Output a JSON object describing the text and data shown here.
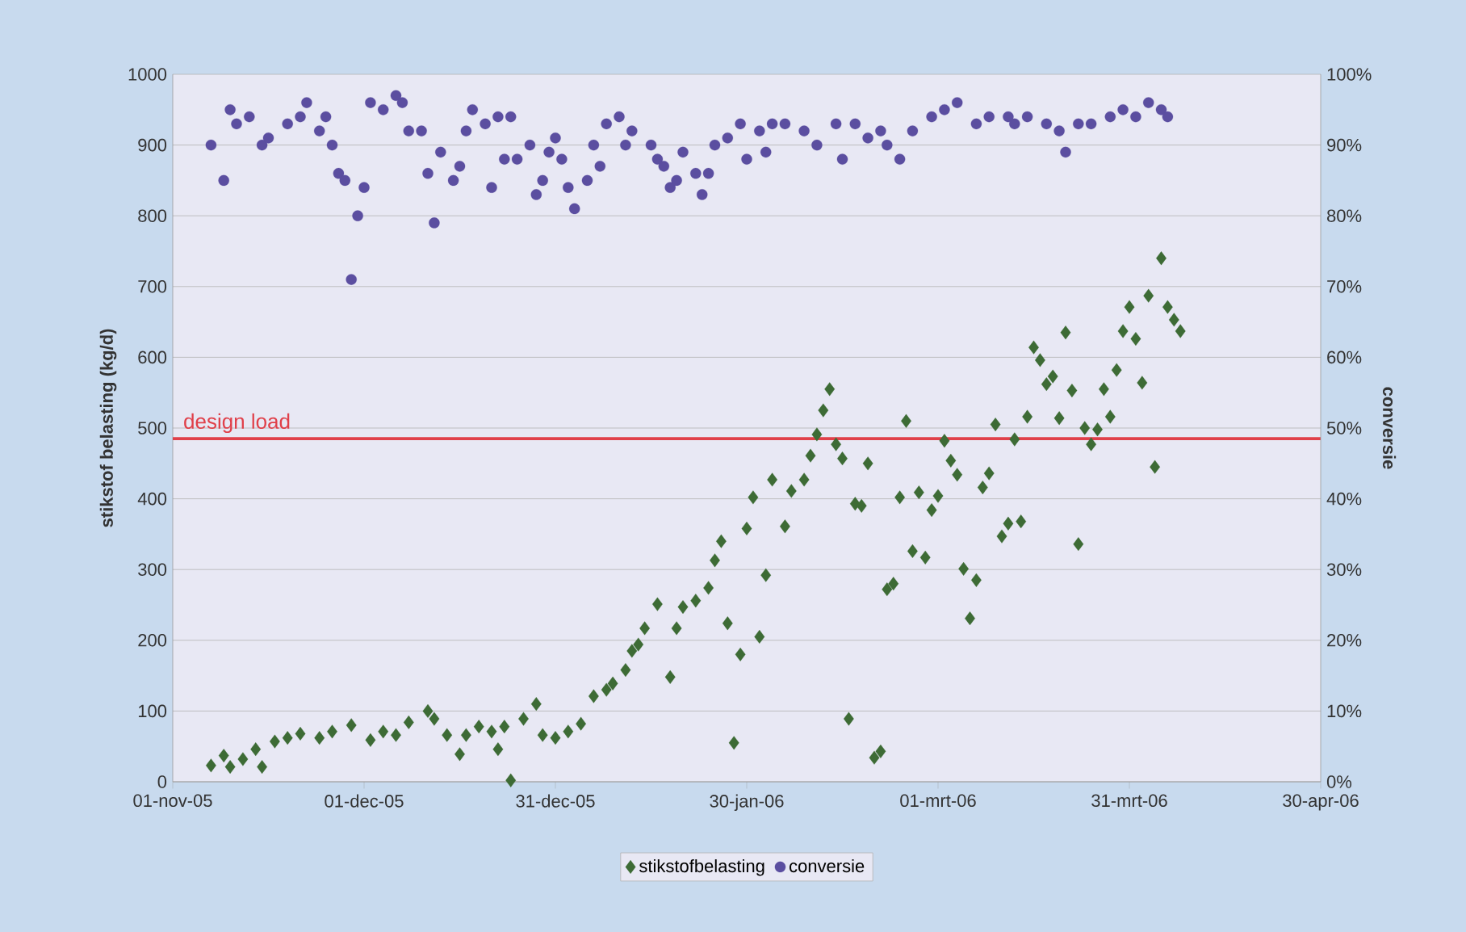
{
  "chart_data": {
    "type": "scatter",
    "xlabel": null,
    "ylabel": "stikstof belasting (kg/d)",
    "y2label": "conversie",
    "xlim": [
      "2005-11-01",
      "2006-04-30"
    ],
    "xticks": [
      {
        "value": "2005-11-01",
        "label": "01-nov-05"
      },
      {
        "value": "2005-12-01",
        "label": "01-dec-05"
      },
      {
        "value": "2005-12-31",
        "label": "31-dec-05"
      },
      {
        "value": "2006-01-30",
        "label": "30-jan-06"
      },
      {
        "value": "2006-03-01",
        "label": "01-mrt-06"
      },
      {
        "value": "2006-03-31",
        "label": "31-mrt-06"
      },
      {
        "value": "2006-04-30",
        "label": "30-apr-06"
      }
    ],
    "ylim": [
      0,
      1000
    ],
    "yticks": [
      0,
      100,
      200,
      300,
      400,
      500,
      600,
      700,
      800,
      900,
      1000
    ],
    "y2lim": [
      0,
      100
    ],
    "y2ticks": [
      {
        "value": 0,
        "label": "0%"
      },
      {
        "value": 10,
        "label": "10%"
      },
      {
        "value": 20,
        "label": "20%"
      },
      {
        "value": 30,
        "label": "30%"
      },
      {
        "value": 40,
        "label": "40%"
      },
      {
        "value": 50,
        "label": "50%"
      },
      {
        "value": 60,
        "label": "60%"
      },
      {
        "value": 70,
        "label": "70%"
      },
      {
        "value": 80,
        "label": "80%"
      },
      {
        "value": 90,
        "label": "90%"
      },
      {
        "value": 100,
        "label": "100%"
      }
    ],
    "grid": "y",
    "legend": "bottom",
    "ref_lines": [
      {
        "axis": "y",
        "value": 485,
        "label": "design load",
        "color": "#e0404a"
      }
    ],
    "series": [
      {
        "name": "stikstofbelasting",
        "color": "#3d6b35",
        "marker": "diamond",
        "x": [
          "2005-11-07",
          "2005-11-09",
          "2005-11-10",
          "2005-11-12",
          "2005-11-14",
          "2005-11-15",
          "2005-11-17",
          "2005-11-19",
          "2005-11-21",
          "2005-11-24",
          "2005-11-26",
          "2005-11-29",
          "2005-12-02",
          "2005-12-04",
          "2005-12-06",
          "2005-12-08",
          "2005-12-11",
          "2005-12-12",
          "2005-12-14",
          "2005-12-16",
          "2005-12-17",
          "2005-12-19",
          "2005-12-21",
          "2005-12-22",
          "2005-12-23",
          "2005-12-24",
          "2005-12-26",
          "2005-12-28",
          "2005-12-29",
          "2005-12-31",
          "2006-01-02",
          "2006-01-04",
          "2006-01-06",
          "2006-01-08",
          "2006-01-09",
          "2006-01-11",
          "2006-01-12",
          "2006-01-13",
          "2006-01-14",
          "2006-01-16",
          "2006-01-18",
          "2006-01-19",
          "2006-01-20",
          "2006-01-22",
          "2006-01-24",
          "2006-01-25",
          "2006-01-26",
          "2006-01-27",
          "2006-01-28",
          "2006-01-29",
          "2006-01-30",
          "2006-01-31",
          "2006-02-01",
          "2006-02-02",
          "2006-02-03",
          "2006-02-05",
          "2006-02-06",
          "2006-02-08",
          "2006-02-09",
          "2006-02-10",
          "2006-02-11",
          "2006-02-12",
          "2006-02-13",
          "2006-02-14",
          "2006-02-15",
          "2006-02-16",
          "2006-02-17",
          "2006-02-18",
          "2006-02-19",
          "2006-02-20",
          "2006-02-21",
          "2006-02-22",
          "2006-02-23",
          "2006-02-24",
          "2006-02-25",
          "2006-02-26",
          "2006-02-27",
          "2006-02-28",
          "2006-03-01",
          "2006-03-02",
          "2006-03-03",
          "2006-03-04",
          "2006-03-05",
          "2006-03-06",
          "2006-03-07",
          "2006-03-08",
          "2006-03-09",
          "2006-03-10",
          "2006-03-11",
          "2006-03-12",
          "2006-03-13",
          "2006-03-14",
          "2006-03-15",
          "2006-03-16",
          "2006-03-17",
          "2006-03-18",
          "2006-03-19",
          "2006-03-20",
          "2006-03-21",
          "2006-03-22",
          "2006-03-23",
          "2006-03-24",
          "2006-03-25",
          "2006-03-26",
          "2006-03-27",
          "2006-03-28",
          "2006-03-29",
          "2006-03-30",
          "2006-03-31",
          "2006-04-01",
          "2006-04-02",
          "2006-04-03",
          "2006-04-04",
          "2006-04-05",
          "2006-04-06",
          "2006-04-07",
          "2006-04-08"
        ],
        "values": [
          23,
          37,
          21,
          32,
          46,
          21,
          57,
          62,
          68,
          62,
          71,
          80,
          59,
          71,
          66,
          84,
          100,
          89,
          66,
          39,
          66,
          78,
          71,
          46,
          78,
          2,
          89,
          110,
          66,
          62,
          71,
          82,
          121,
          130,
          139,
          158,
          185,
          194,
          217,
          251,
          148,
          217,
          247,
          256,
          274,
          313,
          340,
          224,
          55,
          180,
          358,
          402,
          205,
          292,
          427,
          361,
          411,
          427,
          461,
          491,
          525,
          555,
          477,
          457,
          89,
          393,
          390,
          450,
          34,
          43,
          272,
          280,
          402,
          510,
          326,
          409,
          317,
          384,
          404,
          482,
          454,
          434,
          301,
          231,
          285,
          416,
          436,
          505,
          347,
          365,
          484,
          368,
          516,
          614,
          596,
          562,
          573,
          514,
          635,
          553,
          336,
          500,
          477,
          498,
          555,
          516,
          582,
          637,
          671,
          626,
          564,
          687,
          445,
          740,
          671,
          653,
          637
        ]
      },
      {
        "name": "conversie",
        "color": "#5b4ea0",
        "marker": "circle",
        "axis": "y2",
        "x": [
          "2005-11-07",
          "2005-11-09",
          "2005-11-10",
          "2005-11-11",
          "2005-11-13",
          "2005-11-15",
          "2005-11-16",
          "2005-11-19",
          "2005-11-21",
          "2005-11-22",
          "2005-11-24",
          "2005-11-25",
          "2005-11-26",
          "2005-11-27",
          "2005-11-28",
          "2005-11-29",
          "2005-11-30",
          "2005-12-01",
          "2005-12-02",
          "2005-12-04",
          "2005-12-06",
          "2005-12-07",
          "2005-12-08",
          "2005-12-10",
          "2005-12-11",
          "2005-12-12",
          "2005-12-13",
          "2005-12-15",
          "2005-12-16",
          "2005-12-17",
          "2005-12-18",
          "2005-12-20",
          "2005-12-21",
          "2005-12-22",
          "2005-12-23",
          "2005-12-24",
          "2005-12-25",
          "2005-12-27",
          "2005-12-28",
          "2005-12-29",
          "2005-12-30",
          "2005-12-31",
          "2006-01-01",
          "2006-01-02",
          "2006-01-03",
          "2006-01-05",
          "2006-01-06",
          "2006-01-07",
          "2006-01-08",
          "2006-01-10",
          "2006-01-11",
          "2006-01-12",
          "2006-01-15",
          "2006-01-16",
          "2006-01-17",
          "2006-01-18",
          "2006-01-19",
          "2006-01-20",
          "2006-01-22",
          "2006-01-23",
          "2006-01-24",
          "2006-01-25",
          "2006-01-27",
          "2006-01-29",
          "2006-01-30",
          "2006-02-01",
          "2006-02-02",
          "2006-02-03",
          "2006-02-05",
          "2006-02-08",
          "2006-02-10",
          "2006-02-13",
          "2006-02-14",
          "2006-02-16",
          "2006-02-18",
          "2006-02-20",
          "2006-02-21",
          "2006-02-23",
          "2006-02-25",
          "2006-02-28",
          "2006-03-02",
          "2006-03-04",
          "2006-03-07",
          "2006-03-09",
          "2006-03-12",
          "2006-03-13",
          "2006-03-15",
          "2006-03-18",
          "2006-03-20",
          "2006-03-21",
          "2006-03-23",
          "2006-03-25",
          "2006-03-28",
          "2006-03-30",
          "2006-04-01",
          "2006-04-03",
          "2006-04-05",
          "2006-04-06"
        ],
        "values": [
          90,
          85,
          95,
          93,
          94,
          90,
          91,
          93,
          94,
          96,
          92,
          94,
          90,
          86,
          85,
          71,
          80,
          84,
          96,
          95,
          97,
          96,
          92,
          92,
          86,
          79,
          89,
          85,
          87,
          92,
          95,
          93,
          84,
          94,
          88,
          94,
          88,
          90,
          83,
          85,
          89,
          91,
          88,
          84,
          81,
          85,
          90,
          87,
          93,
          94,
          90,
          92,
          90,
          88,
          87,
          84,
          85,
          89,
          86,
          83,
          86,
          90,
          91,
          93,
          88,
          92,
          89,
          93,
          93,
          92,
          90,
          93,
          88,
          93,
          91,
          92,
          90,
          88,
          92,
          94,
          95,
          96,
          93,
          94,
          94,
          93,
          94,
          93,
          92,
          89,
          93,
          93,
          94,
          95,
          94,
          96,
          95,
          94
        ]
      }
    ]
  }
}
